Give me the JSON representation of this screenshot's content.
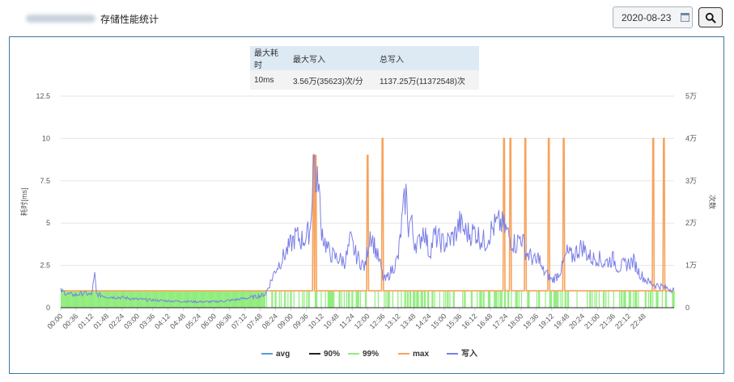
{
  "header": {
    "title": "存储性能统计",
    "date_value": "2020-08-23",
    "calendar_icon": "calendar-icon",
    "search_icon": "search-icon"
  },
  "summary_table": {
    "headers": [
      "最大耗时",
      "最大写入",
      "总写入"
    ],
    "values": [
      "10ms",
      "3.56万(35623)次/分",
      "1137.25万(11372548)次"
    ]
  },
  "chart_data": {
    "type": "line",
    "title": "",
    "xlabel": "",
    "ylabel": "耗时[ms]",
    "y2label": "次数",
    "ylim": [
      0,
      12.5
    ],
    "y2lim": [
      0,
      50000
    ],
    "yticks": [
      "0",
      "2.5",
      "5",
      "7.5",
      "10",
      "12.5"
    ],
    "y2ticks": [
      "0",
      "1万",
      "2万",
      "3万",
      "4万",
      "5万"
    ],
    "xlim_minutes": [
      0,
      1439
    ],
    "xticks": [
      "00:00",
      "00:36",
      "01:12",
      "01:48",
      "02:24",
      "03:00",
      "03:36",
      "04:12",
      "04:48",
      "05:24",
      "06:00",
      "06:36",
      "07:12",
      "07:48",
      "08:24",
      "09:00",
      "09:36",
      "10:12",
      "10:48",
      "11:24",
      "12:00",
      "12:36",
      "13:12",
      "13:48",
      "14:24",
      "15:00",
      "15:36",
      "16:12",
      "16:48",
      "17:24",
      "18:00",
      "18:36",
      "19:12",
      "19:48",
      "20:24",
      "21:00",
      "21:36",
      "22:12",
      "22:48"
    ],
    "grid": true,
    "legend_position": "bottom",
    "legend": [
      "avg",
      "90%",
      "99%",
      "max",
      "写入"
    ],
    "series": [
      {
        "name": "avg",
        "color": "#5b9bd5",
        "axis": "left",
        "points": [
          [
            0,
            0
          ],
          [
            1439,
            0
          ]
        ]
      },
      {
        "name": "90%",
        "color": "#222222",
        "axis": "left",
        "points": [
          [
            0,
            0
          ],
          [
            1439,
            0
          ]
        ]
      },
      {
        "name": "99%",
        "color": "#90ed7d",
        "axis": "left",
        "baseline": 1,
        "drops_to_zero_start": 480,
        "drop_density": 0.55
      },
      {
        "name": "max",
        "color": "#f7a35c",
        "axis": "left",
        "baseline": 1,
        "spikes": [
          [
            593,
            9
          ],
          [
            598,
            9
          ],
          [
            720,
            9
          ],
          [
            755,
            10
          ],
          [
            1040,
            10
          ],
          [
            1055,
            10
          ],
          [
            1090,
            10
          ],
          [
            1145,
            10
          ],
          [
            1180,
            10
          ],
          [
            1390,
            10
          ],
          [
            1415,
            10
          ]
        ]
      },
      {
        "name": "写入",
        "color": "#7b7fe6",
        "axis": "right",
        "points": [
          [
            0,
            4000
          ],
          [
            18,
            3200
          ],
          [
            36,
            3000
          ],
          [
            54,
            3500
          ],
          [
            72,
            3000
          ],
          [
            80,
            7500
          ],
          [
            84,
            3200
          ],
          [
            108,
            2600
          ],
          [
            144,
            2400
          ],
          [
            180,
            2000
          ],
          [
            216,
            1800
          ],
          [
            252,
            1600
          ],
          [
            288,
            1500
          ],
          [
            324,
            1400
          ],
          [
            360,
            1400
          ],
          [
            396,
            1700
          ],
          [
            432,
            2200
          ],
          [
            468,
            2800
          ],
          [
            480,
            3200
          ],
          [
            492,
            6000
          ],
          [
            504,
            9000
          ],
          [
            516,
            11000
          ],
          [
            528,
            13000
          ],
          [
            540,
            15000
          ],
          [
            552,
            17000
          ],
          [
            564,
            16000
          ],
          [
            576,
            16500
          ],
          [
            586,
            19000
          ],
          [
            592,
            33000
          ],
          [
            596,
            35600
          ],
          [
            600,
            26000
          ],
          [
            604,
            32000
          ],
          [
            610,
            20000
          ],
          [
            618,
            16000
          ],
          [
            630,
            13000
          ],
          [
            642,
            12000
          ],
          [
            654,
            11500
          ],
          [
            666,
            11000
          ],
          [
            672,
            12500
          ],
          [
            680,
            16000
          ],
          [
            690,
            13000
          ],
          [
            702,
            11000
          ],
          [
            714,
            9500
          ],
          [
            720,
            14000
          ],
          [
            726,
            18000
          ],
          [
            738,
            14000
          ],
          [
            750,
            10000
          ],
          [
            756,
            7000
          ],
          [
            762,
            6500
          ],
          [
            774,
            8500
          ],
          [
            786,
            10500
          ],
          [
            792,
            12000
          ],
          [
            798,
            18000
          ],
          [
            804,
            23000
          ],
          [
            810,
            27000
          ],
          [
            816,
            19000
          ],
          [
            822,
            21000
          ],
          [
            828,
            16000
          ],
          [
            840,
            15000
          ],
          [
            852,
            19000
          ],
          [
            864,
            13000
          ],
          [
            870,
            14500
          ],
          [
            876,
            17000
          ],
          [
            888,
            16000
          ],
          [
            900,
            15000
          ],
          [
            912,
            16000
          ],
          [
            924,
            17000
          ],
          [
            936,
            20000
          ],
          [
            948,
            18000
          ],
          [
            960,
            17500
          ],
          [
            972,
            18000
          ],
          [
            984,
            16500
          ],
          [
            996,
            15500
          ],
          [
            1008,
            18000
          ],
          [
            1020,
            19500
          ],
          [
            1032,
            20000
          ],
          [
            1044,
            18500
          ],
          [
            1056,
            16000
          ],
          [
            1068,
            15000
          ],
          [
            1080,
            17000
          ],
          [
            1092,
            13000
          ],
          [
            1104,
            12000
          ],
          [
            1116,
            10500
          ],
          [
            1122,
            12500
          ],
          [
            1128,
            9000
          ],
          [
            1140,
            8000
          ],
          [
            1152,
            6500
          ],
          [
            1164,
            7500
          ],
          [
            1176,
            9500
          ],
          [
            1188,
            13000
          ],
          [
            1200,
            12000
          ],
          [
            1212,
            13500
          ],
          [
            1224,
            14500
          ],
          [
            1236,
            12500
          ],
          [
            1248,
            11500
          ],
          [
            1260,
            12000
          ],
          [
            1272,
            10500
          ],
          [
            1284,
            11000
          ],
          [
            1296,
            11500
          ],
          [
            1308,
            9500
          ],
          [
            1320,
            10000
          ],
          [
            1332,
            10500
          ],
          [
            1344,
            11000
          ],
          [
            1356,
            8500
          ],
          [
            1368,
            7000
          ],
          [
            1380,
            6000
          ],
          [
            1392,
            5500
          ],
          [
            1404,
            5200
          ],
          [
            1416,
            4800
          ],
          [
            1428,
            4500
          ],
          [
            1439,
            4200
          ]
        ]
      }
    ]
  }
}
